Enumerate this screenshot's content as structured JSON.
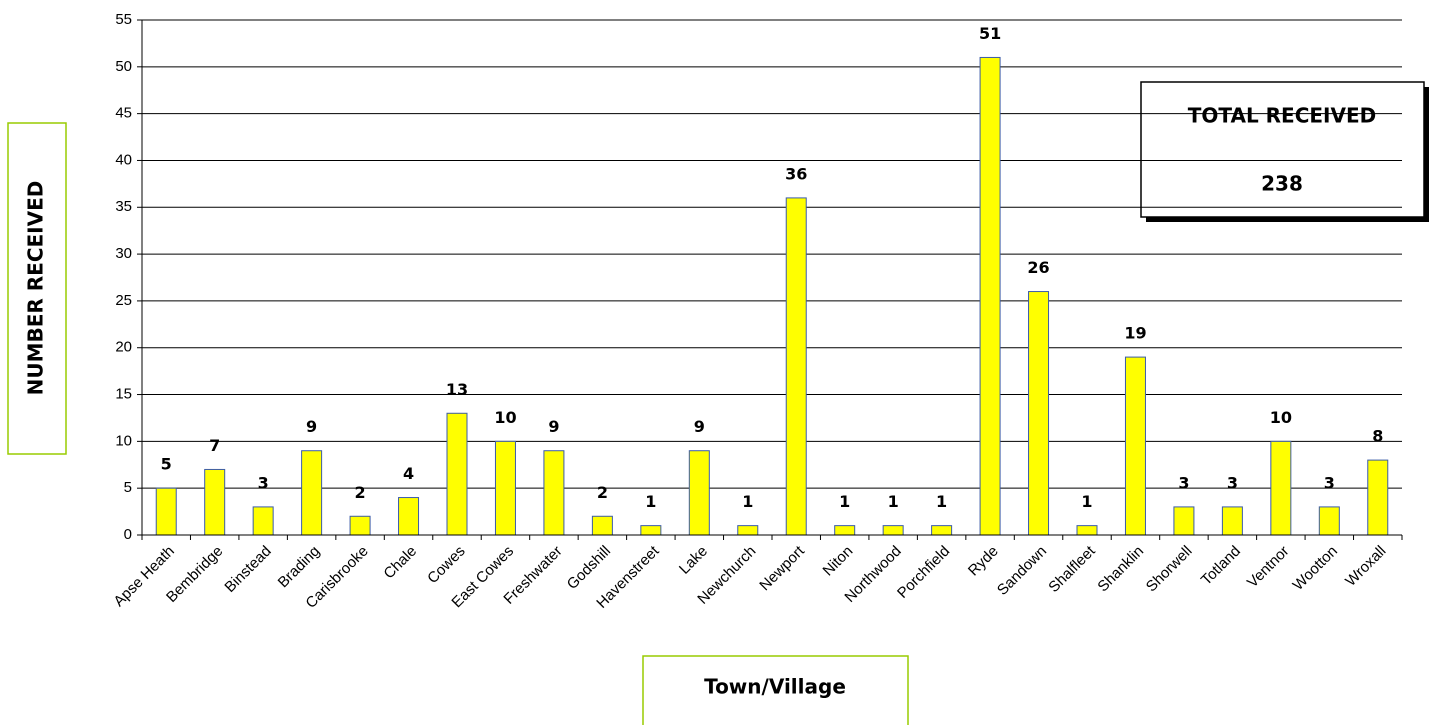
{
  "chart_data": {
    "type": "bar",
    "x_label": "Town/Village",
    "y_label": "NUMBER RECEIVED",
    "total_label": "TOTAL RECEIVED",
    "total_value": 238,
    "categories": [
      "Apse Heath",
      "Bembridge",
      "Binstead",
      "Brading",
      "Carisbrooke",
      "Chale",
      "Cowes",
      "East Cowes",
      "Freshwater",
      "Godshill",
      "Havenstreet",
      "Lake",
      "Newchurch",
      "Newport",
      "Niton",
      "Northwood",
      "Porchfield",
      "Ryde",
      "Sandown",
      "Shalfleet",
      "Shanklin",
      "Shorwell",
      "Totland",
      "Ventnor",
      "Wootton",
      "Wroxall"
    ],
    "values": [
      5,
      7,
      3,
      9,
      2,
      4,
      13,
      10,
      9,
      2,
      1,
      9,
      1,
      36,
      1,
      1,
      1,
      51,
      26,
      1,
      19,
      3,
      3,
      10,
      3,
      8
    ],
    "color": "#ffff00",
    "ylim": [
      0,
      55
    ],
    "yticks": [
      0,
      5,
      10,
      15,
      20,
      25,
      30,
      35,
      40,
      45,
      50,
      55
    ],
    "grid": true
  }
}
